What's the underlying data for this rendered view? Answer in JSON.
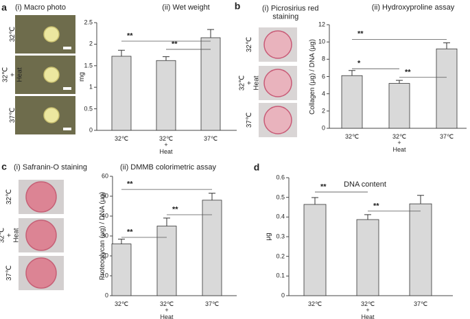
{
  "panels": [
    {
      "letter": "a",
      "title": "(i) Macro photo",
      "photo_labels": [
        "32℃",
        "32℃\n+\nHeat",
        "37℃"
      ]
    },
    {
      "letter": "b",
      "title": "(i) Picrosirius red\n     staining",
      "photo_labels": [
        "32℃",
        "32℃\n+\nHeat",
        "37℃"
      ]
    },
    {
      "letter": "c",
      "title": "(i) Safranin-O staining",
      "photo_labels": [
        "32℃",
        "32℃\n+\nHeat",
        "37℃"
      ]
    },
    {
      "letter": "d"
    }
  ],
  "chart_data": [
    {
      "type": "bar",
      "title": "(ii) Wet weight",
      "y_label": "mg",
      "color": "#d9d9d9",
      "categories": [
        "32℃",
        "32℃\n+\nHeat",
        "37℃"
      ],
      "values": [
        1.72,
        1.62,
        2.15
      ],
      "errors": [
        0.14,
        0.09,
        0.19
      ],
      "ylim": [
        0,
        2.5
      ],
      "yticks": [
        0,
        0.5,
        1,
        1.5,
        2,
        2.5
      ],
      "annotations": [
        {
          "text": "**",
          "from": "32℃",
          "to": "37℃",
          "y": 2.07
        },
        {
          "text": "**",
          "from": "32℃\n+\nHeat",
          "to": "37℃",
          "y": 1.88
        }
      ]
    },
    {
      "type": "bar",
      "title": "(ii) Hydroxyproline assay",
      "y_label": "Collagen (μg) / DNA (μg)",
      "color": "#d9d9d9",
      "categories": [
        "32℃",
        "32℃\n+\nHeat",
        "37℃"
      ],
      "values": [
        6.1,
        5.2,
        9.2
      ],
      "errors": [
        0.6,
        0.35,
        0.7
      ],
      "ylim": [
        0,
        12
      ],
      "yticks": [
        0,
        2,
        4,
        6,
        8,
        10,
        12
      ],
      "annotations": [
        {
          "text": "**",
          "from": "32℃",
          "to": "37℃",
          "y": 10.3
        },
        {
          "text": "*",
          "from": "32℃",
          "to": "32℃\n+\nHeat",
          "y": 6.9
        },
        {
          "text": "**",
          "from": "32℃\n+\nHeat",
          "to": "37℃",
          "y": 5.9
        }
      ]
    },
    {
      "type": "bar",
      "title": "(ii) DMMB colorimetric assay",
      "y_label": "Proteoglycan (μg) / DNA (μg)",
      "color": "#d9d9d9",
      "categories": [
        "32℃",
        "32℃\n+\nHeat",
        "37℃"
      ],
      "values": [
        26,
        35,
        48
      ],
      "errors": [
        2.4,
        4,
        3.5
      ],
      "ylim": [
        0,
        60
      ],
      "yticks": [
        0,
        10,
        20,
        30,
        40,
        50,
        60
      ],
      "annotations": [
        {
          "text": "**",
          "from": "32℃",
          "to": "37℃",
          "y": 53.4
        },
        {
          "text": "**",
          "from": "32℃\n+\nHeat",
          "to": "37℃",
          "y": 40.7
        },
        {
          "text": "**",
          "from": "32℃",
          "to": "32℃\n+\nHeat",
          "y": 29.3
        }
      ]
    },
    {
      "type": "bar",
      "title": "DNA content",
      "y_label": "μg",
      "color": "#d9d9d9",
      "categories": [
        "32℃",
        "32℃\n+\nHeat",
        "37℃"
      ],
      "values": [
        0.464,
        0.387,
        0.467
      ],
      "errors": [
        0.035,
        0.025,
        0.043
      ],
      "ylim": [
        0,
        0.6
      ],
      "yticks": [
        0,
        0.1,
        0.2,
        0.3,
        0.4,
        0.5,
        0.6
      ],
      "annotations": [
        {
          "text": "**",
          "from": "32℃",
          "to": "32℃\n+\nHeat",
          "y": 0.527
        },
        {
          "text": "**",
          "from": "32℃\n+\nHeat",
          "to": "37℃",
          "y": 0.43
        }
      ]
    }
  ]
}
